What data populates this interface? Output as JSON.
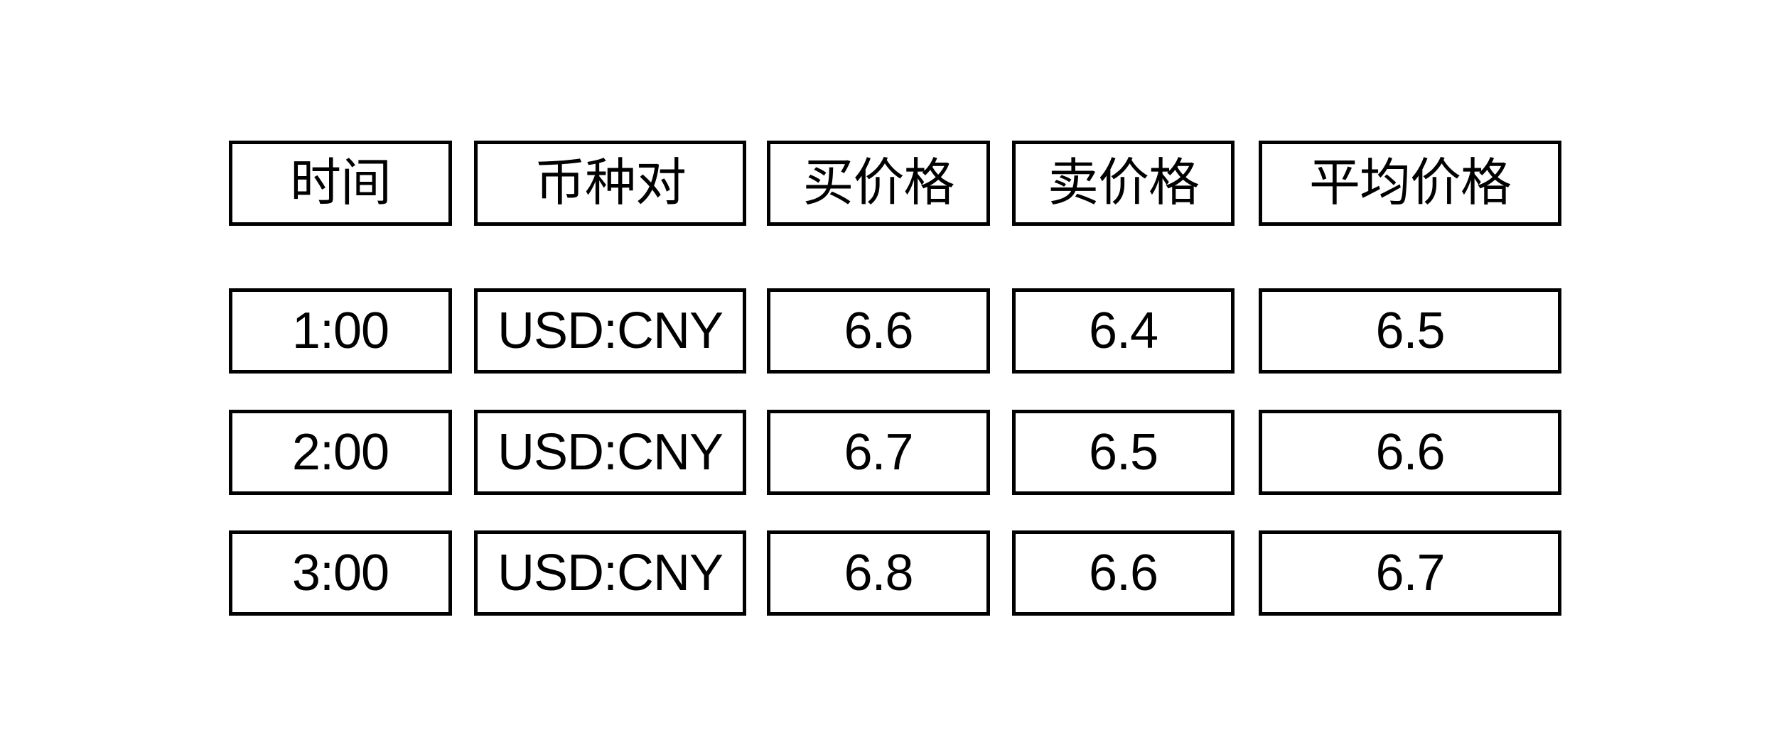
{
  "page": {
    "background_color": "#ffffff",
    "text_color": "#000000",
    "border_color": "#000000"
  },
  "table": {
    "headers": [
      "时间",
      "币种对",
      "买价格",
      "卖价格",
      "平均价格"
    ],
    "rows": [
      [
        "1:00",
        "USD:CNY",
        "6.6",
        "6.4",
        "6.5"
      ],
      [
        "2:00",
        "USD:CNY",
        "6.7",
        "6.5",
        "6.6"
      ],
      [
        "3:00",
        "USD:CNY",
        "6.8",
        "6.6",
        "6.7"
      ]
    ]
  },
  "chart_data": {
    "type": "table",
    "columns": [
      "时间",
      "币种对",
      "买价格",
      "卖价格",
      "平均价格"
    ],
    "rows": [
      [
        "1:00",
        "USD:CNY",
        6.6,
        6.4,
        6.5
      ],
      [
        "2:00",
        "USD:CNY",
        6.7,
        6.5,
        6.6
      ],
      [
        "3:00",
        "USD:CNY",
        6.8,
        6.6,
        6.7
      ]
    ]
  }
}
